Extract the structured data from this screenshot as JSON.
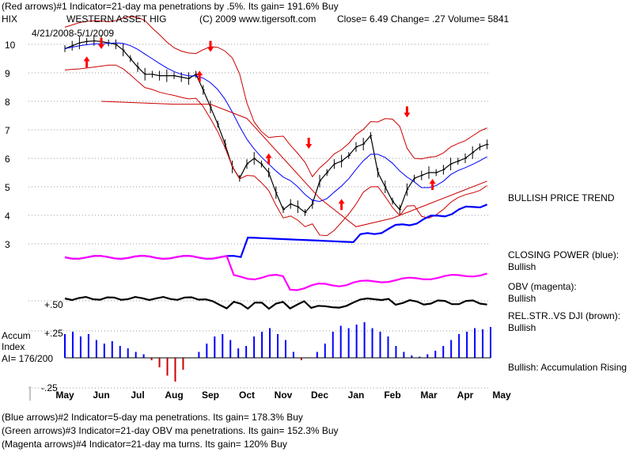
{
  "header": {
    "line1": "(Red arrows)#1 Indicator=21-day ma penetrations by .5%. Its gain= 191.6% Buy",
    "ticker": "HIX",
    "name": "WESTERN ASSET HIG",
    "copyright": "(C) 2009 www.tigersoft.com",
    "quote": "Close=  6.49  Change= .27 Volume= 5841",
    "date_range": "4/21/2008-5/1/2009"
  },
  "right_labels": {
    "trend": "BULLISH PRICE TREND",
    "cp_title": "CLOSING POWER (blue):",
    "cp_value": "Bullish",
    "obv_title": "OBV (magenta):",
    "obv_value": "Bullish",
    "rs_title": "REL.STR..VS DJI (brown):",
    "rs_value": "Bullish",
    "accum_note": "Bullish: Accumulation Rising"
  },
  "left_labels": {
    "rs_level": "+.50",
    "accum_pos": "+.25",
    "accum_neg": "-.25",
    "accum_title": "Accum",
    "index_title": "Index",
    "ai_value": "AI= 176/200"
  },
  "footer": {
    "line1": "(Blue arrows)#2 Indicator=5-day ma penetrations. Its gain= 178.3% Buy",
    "line2": "(Green arrows)#3 Indicator=21-day OBV ma penetrations. Its gain= 152.3% Buy",
    "line3": "(Magenta arrows)#4 Indicator=21-day ma turns. Its gain= 120% Buy"
  },
  "colors": {
    "price": "#000000",
    "signal": "#ff0000",
    "ma_blue": "#0000ff",
    "band": "#cc0000",
    "closing_power": "#0000ff",
    "obv": "#ff00ff",
    "rel_str": "#000000",
    "accum": "#0000ff",
    "accum_negative": "#cc0000",
    "grid": "#999999"
  },
  "chart_data": {
    "type": "line",
    "title": "",
    "xlabel": "",
    "ylabel": "",
    "x_ticks": [
      "May",
      "Jun",
      "Jul",
      "Aug",
      "Sep",
      "Oct",
      "Nov",
      "Dec",
      "Jan",
      "Feb",
      "Mar",
      "Apr",
      "May"
    ],
    "y_ticks": [
      10,
      9,
      8,
      7,
      6,
      5,
      4,
      3
    ],
    "ylim": [
      2.7,
      10.6
    ],
    "grid": "dotted",
    "price": {
      "name": "HIX",
      "x": [
        0,
        0.2,
        0.4,
        0.6,
        0.8,
        1.0,
        1.2,
        1.4,
        1.6,
        1.8,
        2.0,
        2.2,
        2.4,
        2.6,
        2.8,
        3.0,
        3.2,
        3.4,
        3.6,
        3.8,
        4.0,
        4.2,
        4.4,
        4.6,
        4.8,
        5.0,
        5.2,
        5.4,
        5.6,
        5.8,
        6.0,
        6.2,
        6.4,
        6.6,
        6.8,
        7.0,
        7.2,
        7.4,
        7.6,
        7.8,
        8.0,
        8.2,
        8.4,
        8.6,
        8.8,
        9.0,
        9.2,
        9.4,
        9.6,
        9.8,
        10.0,
        10.2,
        10.4,
        10.6,
        10.8,
        11.0,
        11.2,
        11.4,
        11.6
      ],
      "values": [
        9.85,
        9.95,
        10.05,
        10.1,
        10.12,
        10.1,
        10.05,
        10.0,
        9.8,
        9.5,
        9.2,
        8.95,
        8.95,
        8.9,
        8.9,
        8.9,
        8.85,
        8.8,
        8.95,
        8.4,
        7.8,
        7.2,
        6.5,
        5.7,
        5.3,
        5.8,
        6.0,
        5.8,
        5.5,
        4.8,
        4.2,
        4.4,
        4.3,
        4.1,
        4.4,
        5.2,
        5.5,
        5.8,
        5.9,
        6.1,
        6.4,
        6.5,
        6.8,
        5.5,
        5.0,
        4.5,
        4.2,
        4.9,
        5.3,
        5.4,
        5.5,
        5.5,
        5.6,
        5.8,
        5.9,
        6.0,
        6.2,
        6.4,
        6.49
      ]
    },
    "series_names": [
      "CLOSING POWER (blue)",
      "OBV (magenta)",
      "REL.STR..VS DJI (brown)"
    ],
    "accum_index": {
      "y_ticks": [
        0.25,
        -0.25
      ],
      "values": [
        0.2,
        0.22,
        0.18,
        0.2,
        0.15,
        0.12,
        0.14,
        0.1,
        0.08,
        0.05,
        0.03,
        -0.02,
        -0.08,
        -0.15,
        -0.2,
        -0.1,
        0.0,
        0.05,
        0.12,
        0.18,
        0.2,
        0.15,
        0.08,
        0.1,
        0.18,
        0.22,
        0.25,
        0.2,
        0.15,
        0.05,
        -0.02,
        0.0,
        0.05,
        0.12,
        0.22,
        0.27,
        0.25,
        0.28,
        0.3,
        0.25,
        0.22,
        0.18,
        0.1,
        0.05,
        0.02,
        0.01,
        0.03,
        0.06,
        0.1,
        0.15,
        0.2,
        0.22,
        0.25,
        0.24,
        0.26
      ]
    },
    "signals": {
      "buy_arrows": [
        [
          "May-Jun",
          9.3
        ],
        [
          "Aug-Sep",
          8.8
        ],
        [
          "Oct",
          5.9
        ],
        [
          "Dec",
          4.3
        ],
        [
          "Mar",
          5.0
        ]
      ],
      "sell_arrows": [
        [
          "Jun",
          10.0
        ],
        [
          "Sep",
          9.9
        ],
        [
          "Nov",
          6.5
        ],
        [
          "Feb",
          7.6
        ]
      ]
    }
  }
}
